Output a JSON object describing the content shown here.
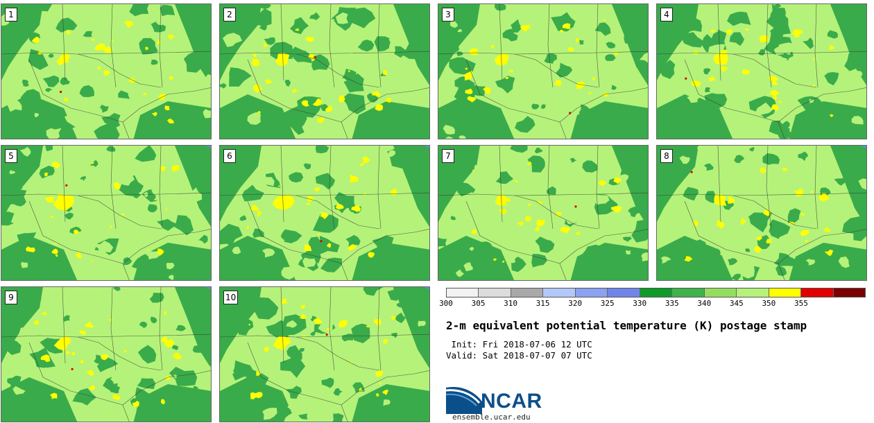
{
  "stamps": [
    {
      "label": "1"
    },
    {
      "label": "2"
    },
    {
      "label": "3"
    },
    {
      "label": "4"
    },
    {
      "label": "5"
    },
    {
      "label": "6"
    },
    {
      "label": "7"
    },
    {
      "label": "8"
    },
    {
      "label": "9"
    },
    {
      "label": "10"
    }
  ],
  "colorbar": {
    "colors": [
      "#f2f2f2",
      "#dcdcdc",
      "#a9a9a9",
      "#b2c8f8",
      "#8aa2ef",
      "#6f86e8",
      "#0f9b2a",
      "#3fb24c",
      "#94de5f",
      "#b5f27a",
      "#ffff00",
      "#e00000",
      "#7a0000"
    ],
    "ticks": [
      "300",
      "305",
      "310",
      "315",
      "320",
      "325",
      "330",
      "335",
      "340",
      "345",
      "350",
      "355"
    ]
  },
  "map_colors": {
    "dark_green": "#3aab4a",
    "light_green": "#b5f27a",
    "yellow": "#ffff00",
    "red": "#e00000",
    "blue": "#6f86e8"
  },
  "title": "2-m equivalent potential temperature (K) postage stamp",
  "init": " Init: Fri 2018-07-06 12 UTC",
  "valid": "Valid: Sat 2018-07-07 07 UTC",
  "logo": {
    "text": "NCAR",
    "url": "ensemble.ucar.edu"
  }
}
